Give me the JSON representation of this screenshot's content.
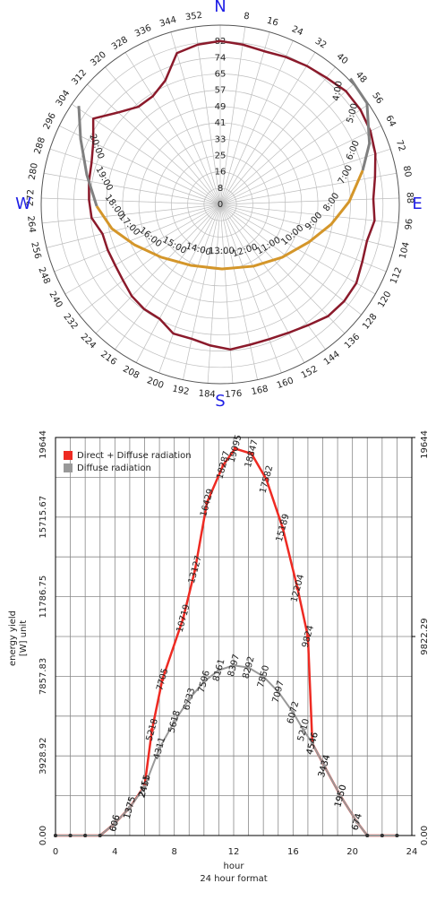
{
  "chart_data": [
    {
      "type": "polar",
      "compass": [
        "N",
        "E",
        "S",
        "W"
      ],
      "compass_color": "#1f1fe6",
      "rlim": [
        0,
        90
      ],
      "rticks": [
        0,
        {
          "value": 8.18,
          "label": "8"
        },
        {
          "value": 16.36,
          "label": "16"
        },
        {
          "value": 24.55,
          "label": "25"
        },
        {
          "value": 32.73,
          "label": "33"
        },
        {
          "value": 40.91,
          "label": "41"
        },
        {
          "value": 49.09,
          "label": "49"
        },
        {
          "value": 57.27,
          "label": "57"
        },
        {
          "value": 65.45,
          "label": "65"
        },
        {
          "value": 73.64,
          "label": "74"
        },
        {
          "value": 81.82,
          "label": "82"
        }
      ],
      "aticks": [
        8,
        16,
        24,
        32,
        40,
        48,
        56,
        64,
        72,
        80,
        88,
        96,
        104,
        112,
        120,
        128,
        136,
        144,
        152,
        160,
        168,
        176,
        184,
        192,
        200,
        208,
        216,
        224,
        232,
        240,
        248,
        256,
        264,
        272,
        280,
        288,
        296,
        304,
        312,
        320,
        328,
        336,
        344,
        352
      ],
      "horizon": {
        "color": "#8b1a2b",
        "azimuth": [
          0,
          8,
          16,
          24,
          32,
          40,
          48,
          56,
          64,
          72,
          80,
          88,
          96,
          104,
          112,
          120,
          128,
          136,
          144,
          152,
          160,
          168,
          176,
          184,
          192,
          200,
          208,
          216,
          224,
          232,
          240,
          248,
          256,
          264,
          272,
          280,
          288,
          296,
          304,
          312,
          320,
          328,
          336,
          344,
          352
        ],
        "values": [
          82,
          81,
          80,
          81,
          82,
          83,
          85,
          85,
          84,
          82,
          79,
          77,
          78,
          76,
          77,
          79,
          79,
          78,
          75,
          73,
          72,
          72,
          73,
          71,
          69,
          69,
          65,
          65,
          64,
          62,
          61,
          61,
          61,
          65,
          66,
          67,
          68,
          71,
          77,
          69,
          64,
          64,
          68,
          79,
          81
        ]
      },
      "sun_path": [
        {
          "color": "#808080",
          "labels": [
            "4:00",
            "5:00",
            "6:00",
            null
          ],
          "azimuth": [
            46,
            55.4,
            67.8,
            76.6
          ],
          "values": [
            91,
            89.6,
            81,
            73.6
          ]
        },
        {
          "color": "#d4962a",
          "labels": [
            "7:00",
            "8:00",
            "9:00",
            "10:00",
            "11:00",
            "12:00",
            "13:00",
            "14:00",
            "15:00",
            "16:00",
            "17:00",
            "18:00"
          ],
          "azimuth": [
            76.6,
            88.8,
            100.1,
            113,
            130.5,
            151.8,
            178.4,
            205.9,
            228.2,
            244.9,
            257.4,
            269.2
          ],
          "values": [
            73.6,
            64.8,
            56.7,
            48.4,
            40.9,
            35.2,
            32.4,
            34,
            39.8,
            47.7,
            55.8,
            62.1
          ]
        },
        {
          "color": "#808080",
          "labels": [
            null,
            "19:00",
            "20:00",
            null
          ],
          "azimuth": [
            269.2,
            282.5,
            295.1,
            304.8
          ],
          "values": [
            62.1,
            68.7,
            77.5,
            86.6
          ]
        }
      ]
    },
    {
      "type": "line",
      "ylabel": [
        "energy yield",
        "[W] unit"
      ],
      "xlabel": [
        "hour",
        "24 hour format"
      ],
      "xlim": [
        0,
        24
      ],
      "xticks": [
        0,
        4,
        8,
        12,
        16,
        20,
        24
      ],
      "xminorticks": [
        1,
        2,
        3,
        5,
        6,
        7,
        9,
        10,
        11,
        13,
        14,
        15,
        17,
        18,
        19,
        21,
        22,
        23
      ],
      "ylim": [
        0,
        19644.58
      ],
      "yticks": [
        {
          "value": 0,
          "label": "0.00"
        },
        {
          "value": 3928.92,
          "label": "3928.92"
        },
        {
          "value": 7857.83,
          "label": "7857.83"
        },
        {
          "value": 11786.75,
          "label": "11786.75"
        },
        {
          "value": 15715.67,
          "label": "15715.67"
        },
        {
          "value": 19644.58,
          "label": "19644.58"
        }
      ],
      "yminorticks": [
        1964.46,
        5893.37,
        9822.29,
        13751.21,
        17680.12
      ],
      "y2lim": [
        0,
        19644.58
      ],
      "y2ticks": [
        {
          "value": 0,
          "label": "0.00"
        },
        {
          "value": 9822.29,
          "label": "9822.29"
        },
        {
          "value": 19644.58,
          "label": "19644.58"
        }
      ],
      "grid": true,
      "legend": "upper left",
      "series": [
        {
          "name": "Direct + Diffuse radiation",
          "color": "#ee2a22",
          "x": [
            0,
            1,
            2,
            3,
            4,
            5,
            6,
            6.5,
            7.2,
            8.6,
            9.4,
            10.2,
            11.3,
            12.1,
            13.2,
            14.2,
            15.3,
            16.3,
            17,
            17.3,
            18.1,
            19.2,
            20.3,
            21,
            22,
            23
          ],
          "values": [
            0,
            0,
            0,
            0,
            606,
            1375,
            2455,
            5218,
            7705,
            10719,
            13127,
            16429,
            18287,
            19095,
            18847,
            17582,
            15189,
            12204,
            9824,
            4546,
            3434,
            1950,
            674,
            0,
            0,
            0
          ]
        },
        {
          "name": "Diffuse radiation",
          "color": "#999999",
          "x": [
            0,
            1,
            2,
            3,
            4,
            5,
            6,
            7,
            8,
            9,
            10,
            11,
            12,
            13,
            14,
            15,
            16,
            16.7,
            17.3,
            18.1,
            19.2,
            20.3,
            21,
            22,
            23
          ],
          "values": [
            0,
            0,
            0,
            0,
            606,
            1375,
            2411,
            4311,
            5618,
            6733,
            7596,
            8161,
            8397,
            8292,
            7850,
            7097,
            6072,
            5210,
            4546,
            3434,
            1950,
            674,
            0,
            0,
            0
          ]
        }
      ]
    }
  ]
}
